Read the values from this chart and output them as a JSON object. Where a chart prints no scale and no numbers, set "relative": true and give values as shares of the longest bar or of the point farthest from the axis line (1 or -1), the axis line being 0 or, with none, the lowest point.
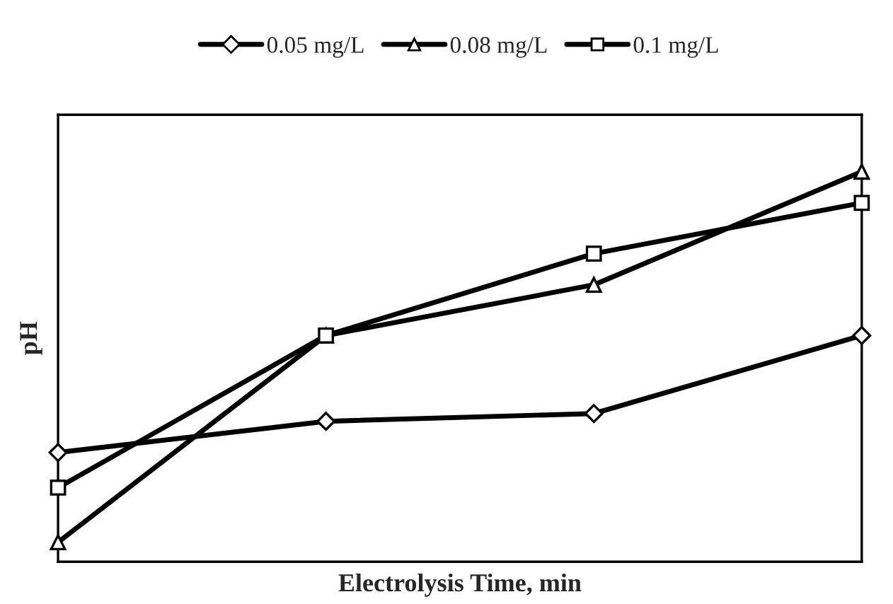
{
  "chart_data": {
    "type": "line",
    "relative": true,
    "xlabel": "Electrolysis Time, min",
    "ylabel": "pH",
    "categories": [
      null,
      null,
      null,
      null
    ],
    "legend": "top",
    "grid": false,
    "tick_labels": false,
    "line_style": "solid",
    "series": [
      {
        "name": "0.05 mg/L",
        "color": "#000000",
        "marker": "diamond",
        "values": [
          0.28,
          0.36,
          0.38,
          0.58
        ]
      },
      {
        "name": "0.08 mg/L",
        "color": "#000000",
        "marker": "triangle",
        "values": [
          0.05,
          0.58,
          0.71,
          1.0
        ]
      },
      {
        "name": "0.1 mg/L",
        "color": "#000000",
        "marker": "square",
        "values": [
          0.19,
          0.58,
          0.79,
          0.92
        ]
      }
    ]
  }
}
